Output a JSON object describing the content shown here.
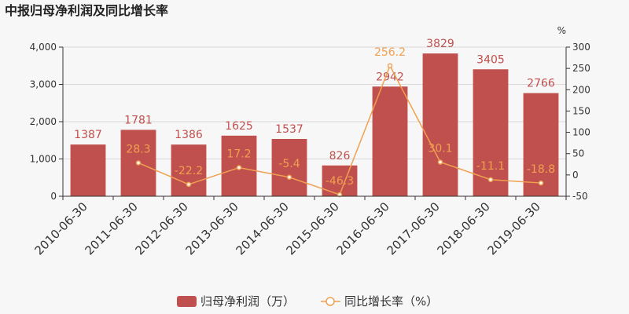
{
  "title": "中报归母净利润及同比增长率",
  "colors": {
    "bar": "#c0504d",
    "line": "#f0a050",
    "axis": "#333333",
    "grid": "#d9d9d9"
  },
  "chart_data": {
    "type": "bar",
    "title": "中报归母净利润及同比增长率",
    "categories": [
      "2010-06-30",
      "2011-06-30",
      "2012-06-30",
      "2013-06-30",
      "2014-06-30",
      "2015-06-30",
      "2016-06-30",
      "2017-06-30",
      "2018-06-30",
      "2019-06-30"
    ],
    "series": [
      {
        "name": "归母净利润（万）",
        "type": "bar",
        "axis": "left",
        "values": [
          1387,
          1781,
          1386,
          1625,
          1537,
          826,
          2942,
          3829,
          3405,
          2766
        ]
      },
      {
        "name": "同比增长率（%）",
        "type": "line",
        "axis": "right",
        "values": [
          null,
          28.3,
          -22.2,
          17.2,
          -5.4,
          -46.3,
          256.2,
          30.1,
          -11.1,
          -18.8
        ]
      }
    ],
    "left_axis": {
      "min": 0,
      "max": 4000,
      "ticks": [
        0,
        1000,
        2000,
        3000,
        4000
      ],
      "tick_labels": [
        "0",
        "1,000",
        "2,000",
        "3,000",
        "4,000"
      ]
    },
    "right_axis": {
      "min": -50,
      "max": 300,
      "ticks": [
        -50,
        0,
        50,
        100,
        150,
        200,
        250,
        300
      ],
      "tick_labels": [
        "-50",
        "0",
        "50",
        "100",
        "150",
        "200",
        "250",
        "300"
      ],
      "unit": "%"
    },
    "grid": true,
    "legend_position": "bottom"
  }
}
